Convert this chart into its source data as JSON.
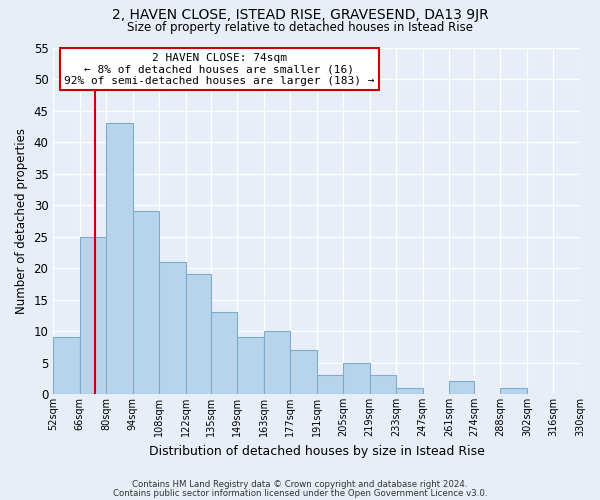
{
  "title": "2, HAVEN CLOSE, ISTEAD RISE, GRAVESEND, DA13 9JR",
  "subtitle": "Size of property relative to detached houses in Istead Rise",
  "xlabel": "Distribution of detached houses by size in Istead Rise",
  "ylabel": "Number of detached properties",
  "bar_color": "#b8d4ea",
  "bar_edge_color": "#7aaecf",
  "background_color": "#e8eef8",
  "grid_color": "#ffffff",
  "bins": [
    52,
    66,
    80,
    94,
    108,
    122,
    135,
    149,
    163,
    177,
    191,
    205,
    219,
    233,
    247,
    261,
    274,
    288,
    302,
    316,
    330
  ],
  "bin_labels": [
    "52sqm",
    "66sqm",
    "80sqm",
    "94sqm",
    "108sqm",
    "122sqm",
    "135sqm",
    "149sqm",
    "163sqm",
    "177sqm",
    "191sqm",
    "205sqm",
    "219sqm",
    "233sqm",
    "247sqm",
    "261sqm",
    "274sqm",
    "288sqm",
    "302sqm",
    "316sqm",
    "330sqm"
  ],
  "counts": [
    9,
    25,
    43,
    29,
    21,
    19,
    13,
    9,
    10,
    7,
    3,
    5,
    3,
    1,
    0,
    2,
    0,
    1,
    0,
    0
  ],
  "ylim": [
    0,
    55
  ],
  "yticks": [
    0,
    5,
    10,
    15,
    20,
    25,
    30,
    35,
    40,
    45,
    50,
    55
  ],
  "property_line_x": 74,
  "property_line_color": "#cc0000",
  "annotation_title": "2 HAVEN CLOSE: 74sqm",
  "annotation_line1": "← 8% of detached houses are smaller (16)",
  "annotation_line2": "92% of semi-detached houses are larger (183) →",
  "annotation_box_color": "#ffffff",
  "annotation_box_edge": "#cc0000",
  "footer_line1": "Contains HM Land Registry data © Crown copyright and database right 2024.",
  "footer_line2": "Contains public sector information licensed under the Open Government Licence v3.0."
}
